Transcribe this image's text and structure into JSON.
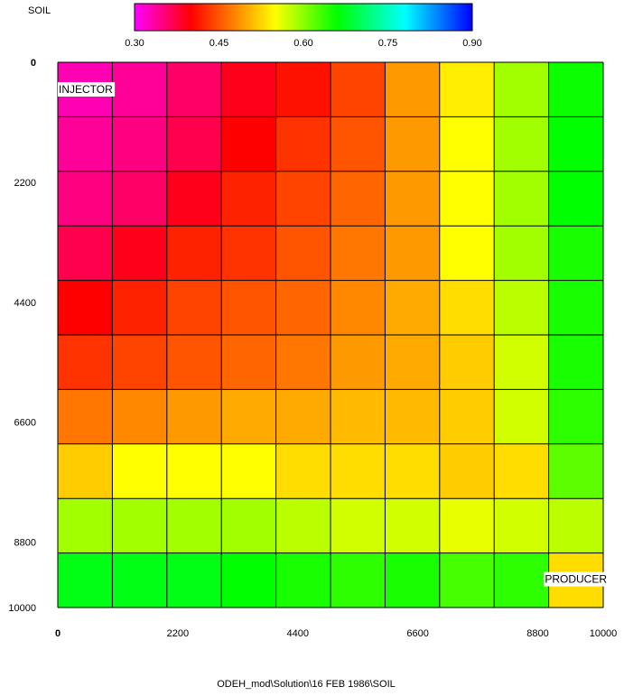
{
  "chart_data": {
    "type": "heatmap",
    "variable": "SOIL",
    "footer": "ODEH_mod\\Solution\\16 FEB 1986\\SOIL",
    "colorbar": {
      "label": "SOIL",
      "range": [
        0.3,
        0.9
      ],
      "ticks": [
        "0.30",
        "0.45",
        "0.60",
        "0.75",
        "0.90"
      ],
      "stops": [
        {
          "v": 0.3,
          "color": "#ff00ff"
        },
        {
          "v": 0.4,
          "color": "#ff0000"
        },
        {
          "v": 0.55,
          "color": "#ffff00"
        },
        {
          "v": 0.66,
          "color": "#00ff00"
        },
        {
          "v": 0.78,
          "color": "#00ffff"
        },
        {
          "v": 0.9,
          "color": "#0000ff"
        }
      ]
    },
    "x_axis": {
      "range": [
        0,
        10000
      ],
      "ticks": [
        {
          "v": 0,
          "label": "0"
        },
        {
          "v": 2200,
          "label": "2200"
        },
        {
          "v": 4400,
          "label": "4400"
        },
        {
          "v": 6600,
          "label": "6600"
        },
        {
          "v": 8800,
          "label": "8800"
        },
        {
          "v": 10000,
          "label": "10000"
        }
      ]
    },
    "y_axis": {
      "range": [
        0,
        10000
      ],
      "ticks": [
        {
          "v": 0,
          "label": "0"
        },
        {
          "v": 2200,
          "label": "2200"
        },
        {
          "v": 4400,
          "label": "4400"
        },
        {
          "v": 6600,
          "label": "6600"
        },
        {
          "v": 8800,
          "label": "8800"
        },
        {
          "v": 10000,
          "label": "10000"
        }
      ]
    },
    "grid": {
      "nx": 10,
      "ny": 10
    },
    "values": [
      [
        0.33,
        0.34,
        0.36,
        0.39,
        0.41,
        0.44,
        0.49,
        0.54,
        0.59,
        0.655
      ],
      [
        0.34,
        0.35,
        0.37,
        0.4,
        0.43,
        0.45,
        0.49,
        0.55,
        0.59,
        0.66
      ],
      [
        0.35,
        0.36,
        0.39,
        0.42,
        0.44,
        0.46,
        0.49,
        0.55,
        0.59,
        0.66
      ],
      [
        0.37,
        0.39,
        0.42,
        0.43,
        0.45,
        0.47,
        0.49,
        0.55,
        0.59,
        0.65
      ],
      [
        0.4,
        0.42,
        0.44,
        0.45,
        0.46,
        0.48,
        0.5,
        0.53,
        0.58,
        0.65
      ],
      [
        0.43,
        0.44,
        0.45,
        0.46,
        0.47,
        0.49,
        0.5,
        0.52,
        0.57,
        0.65
      ],
      [
        0.47,
        0.48,
        0.49,
        0.5,
        0.5,
        0.51,
        0.51,
        0.52,
        0.57,
        0.64
      ],
      [
        0.52,
        0.55,
        0.55,
        0.55,
        0.53,
        0.53,
        0.53,
        0.52,
        0.53,
        0.62
      ],
      [
        0.59,
        0.59,
        0.59,
        0.59,
        0.58,
        0.57,
        0.57,
        0.56,
        0.57,
        0.58
      ],
      [
        0.67,
        0.67,
        0.67,
        0.66,
        0.65,
        0.64,
        0.65,
        0.63,
        0.64,
        0.53
      ]
    ],
    "annotations": [
      {
        "text": "INJECTOR",
        "i": 0,
        "j": 0,
        "anchor": "left"
      },
      {
        "text": "PRODUCER",
        "i": 9,
        "j": 9,
        "anchor": "right"
      }
    ]
  }
}
